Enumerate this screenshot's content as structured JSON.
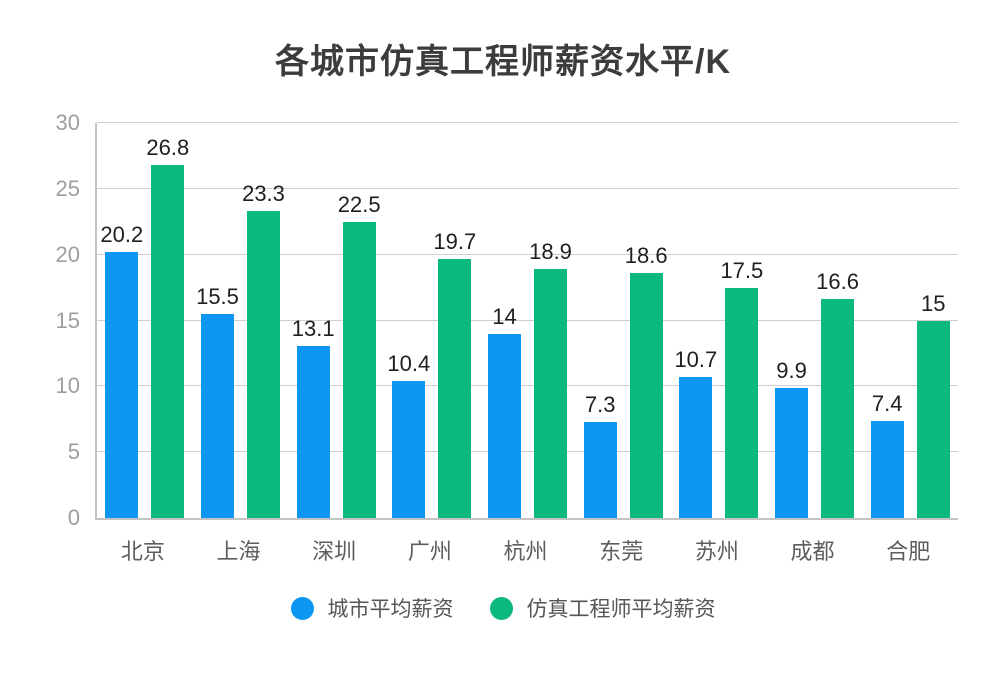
{
  "chart_data": {
    "type": "bar",
    "title": "各城市仿真工程师薪资水平/K",
    "categories": [
      "北京",
      "上海",
      "深圳",
      "广州",
      "杭州",
      "东莞",
      "苏州",
      "成都",
      "合肥"
    ],
    "series": [
      {
        "key": "city-average",
        "name": "城市平均薪资",
        "color": "#0d96f2",
        "values": [
          20.2,
          15.5,
          13.1,
          10.4,
          14,
          7.3,
          10.7,
          9.9,
          7.4
        ],
        "labels": [
          "20.2",
          "15.5",
          "13.1",
          "10.4",
          "14",
          "7.3",
          "10.7",
          "9.9",
          "7.4"
        ]
      },
      {
        "key": "engineer-average",
        "name": "仿真工程师平均薪资",
        "color": "#0cb97c",
        "values": [
          26.8,
          23.3,
          22.5,
          19.7,
          18.9,
          18.6,
          17.5,
          16.6,
          15
        ],
        "labels": [
          "26.8",
          "23.3",
          "22.5",
          "19.7",
          "18.9",
          "18.6",
          "17.5",
          "16.6",
          "15"
        ]
      }
    ],
    "ylim": [
      0,
      30
    ],
    "yticks": [
      0,
      5,
      10,
      15,
      20,
      25,
      30
    ],
    "grid": true,
    "value_labels": true,
    "legend_position": "bottom"
  },
  "colors": {
    "series_blue": "#0d96f2",
    "series_green": "#0cb97c",
    "title_text": "#3c3c3c",
    "value_label_text": "#1f1f1f",
    "y_tick_text": "#9e9e9e",
    "x_tick_text": "#5e5e5e",
    "legend_text": "#565656",
    "gridline": "#cfcfcf",
    "axis_line": "#c3c3c3",
    "background": "#ffffff"
  }
}
